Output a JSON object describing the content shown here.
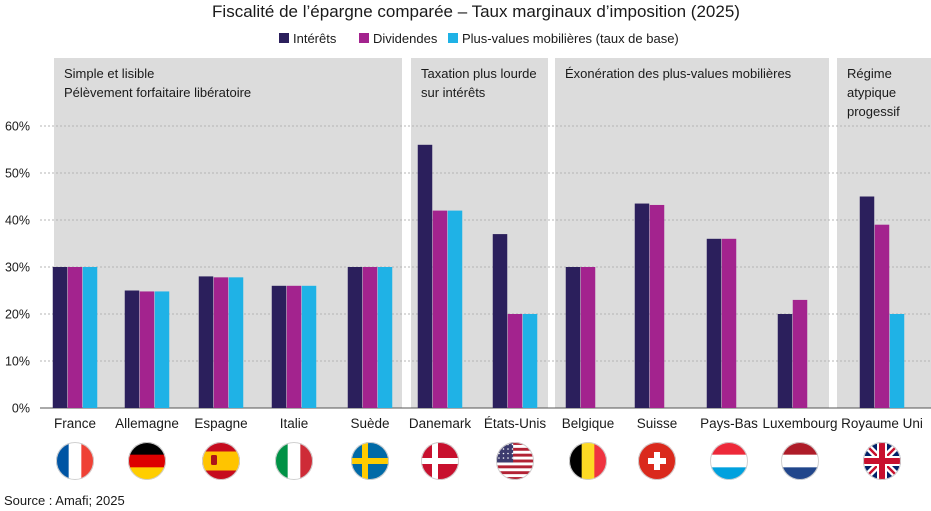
{
  "chart_data": {
    "type": "bar",
    "title": "Fiscalité de l’épargne comparée – Taux marginaux d’imposition (2025)",
    "source": "Source : Amafi; 2025",
    "ylim": [
      0,
      60
    ],
    "yticks": [
      0,
      10,
      20,
      30,
      40,
      50,
      60
    ],
    "ytick_labels": [
      "0%",
      "10%",
      "20%",
      "30%",
      "40%",
      "50%",
      "60%"
    ],
    "grid": true,
    "legend_position": "top-center",
    "categories": [
      "France",
      "Allemagne",
      "Espagne",
      "Italie",
      "Suède",
      "Danemark",
      "États-Unis",
      "Belgique",
      "Suisse",
      "Pays-Bas",
      "Luxembourg",
      "Royaume Uni"
    ],
    "series": [
      {
        "name": "Intérêts",
        "color": "#2b1f5c",
        "values": [
          30,
          25,
          28,
          26,
          30,
          56,
          37,
          30,
          43.5,
          36,
          20,
          45
        ]
      },
      {
        "name": "Dividendes",
        "color": "#a3238e",
        "values": [
          30,
          24.8,
          27.8,
          26,
          30,
          42,
          20,
          30,
          43.2,
          36,
          23,
          39
        ]
      },
      {
        "name": "Plus-values mobilières (taux de base)",
        "color": "#1fb2e6",
        "values": [
          30,
          24.8,
          27.8,
          26,
          30,
          42,
          20,
          null,
          null,
          null,
          null,
          20
        ]
      }
    ],
    "groups": [
      {
        "lines": [
          "Simple et lisible",
          "Pélèvement forfaitaire libératoire"
        ],
        "first": 0,
        "last": 4
      },
      {
        "lines": [
          "Taxation plus lourde",
          "sur intérêts"
        ],
        "first": 5,
        "last": 6
      },
      {
        "lines": [
          "Éxonération des plus-values mobilières"
        ],
        "first": 7,
        "last": 10
      },
      {
        "lines": [
          "Régime",
          "atypique",
          "progessif"
        ],
        "first": 11,
        "last": 11
      }
    ],
    "flags": [
      {
        "name": "france-flag-icon",
        "type": "v3",
        "colors": [
          "#0055a4",
          "#ffffff",
          "#ef4135"
        ]
      },
      {
        "name": "germany-flag-icon",
        "type": "h3",
        "colors": [
          "#000000",
          "#dd0000",
          "#ffce00"
        ]
      },
      {
        "name": "spain-flag-icon",
        "type": "spain",
        "colors": [
          "#c60b1e",
          "#ffc400",
          "#ad1519"
        ]
      },
      {
        "name": "italy-flag-icon",
        "type": "v3",
        "colors": [
          "#009246",
          "#ffffff",
          "#ce2b37"
        ]
      },
      {
        "name": "sweden-flag-icon",
        "type": "nordic",
        "colors": [
          "#006aa7",
          "#fecc00"
        ]
      },
      {
        "name": "denmark-flag-icon",
        "type": "nordic",
        "colors": [
          "#c8102e",
          "#ffffff"
        ]
      },
      {
        "name": "usa-flag-icon",
        "type": "usa",
        "colors": [
          "#b22234",
          "#ffffff",
          "#3c3b6e"
        ]
      },
      {
        "name": "belgium-flag-icon",
        "type": "v3",
        "colors": [
          "#000000",
          "#fdda24",
          "#ef3340"
        ]
      },
      {
        "name": "switzerland-flag-icon",
        "type": "swiss",
        "colors": [
          "#da291c",
          "#ffffff"
        ]
      },
      {
        "name": "luxembourg-flag-icon",
        "type": "h3",
        "colors": [
          "#ed2939",
          "#ffffff",
          "#00a1de"
        ]
      },
      {
        "name": "netherlands-flag-icon",
        "type": "h3",
        "colors": [
          "#ae1c28",
          "#ffffff",
          "#21468b"
        ]
      },
      {
        "name": "uk-flag-icon",
        "type": "uk",
        "colors": [
          "#012169",
          "#ffffff",
          "#c8102e"
        ]
      }
    ],
    "panel_color": "#dcdcdc",
    "gridline_color": "#b5b5b5"
  }
}
